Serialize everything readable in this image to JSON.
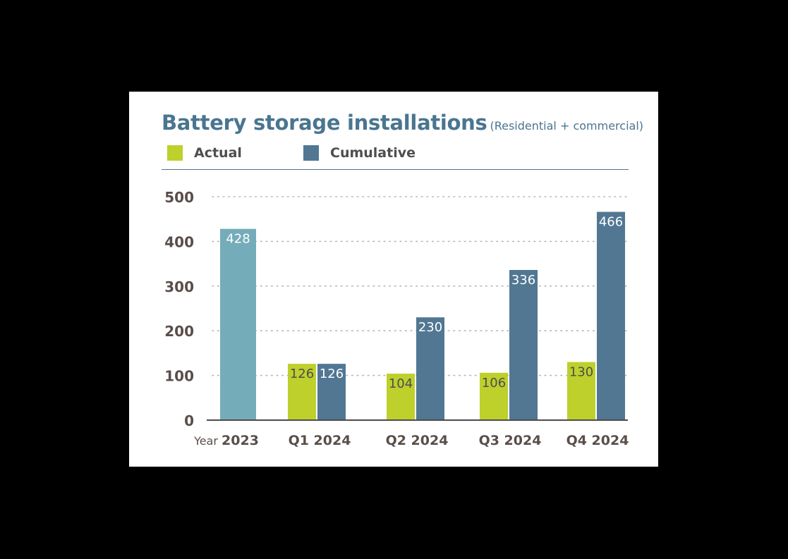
{
  "title": "Battery storage installations",
  "subtitle": "(Residential + commercial)",
  "legend": [
    {
      "label": "Actual",
      "color": "#bdd02c"
    },
    {
      "label": "Cumulative",
      "color": "#517793"
    }
  ],
  "colors": {
    "actual": "#bdd02c",
    "cumulative": "#517793",
    "year_total": "#74adb9",
    "title": "#4a7590",
    "axis_text": "#5a4e4a",
    "grid": "#b6b6b6"
  },
  "chart_data": {
    "type": "bar",
    "title": "Battery storage installations",
    "subtitle": "(Residential + commercial)",
    "xlabel": "",
    "ylabel": "",
    "ylim": [
      0,
      500
    ],
    "yticks": [
      0,
      100,
      200,
      300,
      400,
      500
    ],
    "grid": "dotted horizontal",
    "legend_position": "top-left",
    "categories": [
      {
        "prefix": "Year",
        "label": "2023"
      },
      {
        "prefix": "",
        "label": "Q1 2024"
      },
      {
        "prefix": "",
        "label": "Q2 2024"
      },
      {
        "prefix": "",
        "label": "Q3 2024"
      },
      {
        "prefix": "",
        "label": "Q4 2024"
      }
    ],
    "year_total": {
      "category": "2023",
      "value": 428
    },
    "series": [
      {
        "name": "Actual",
        "values": [
          null,
          126,
          104,
          106,
          130
        ]
      },
      {
        "name": "Cumulative",
        "values": [
          null,
          126,
          230,
          336,
          466
        ]
      }
    ]
  }
}
